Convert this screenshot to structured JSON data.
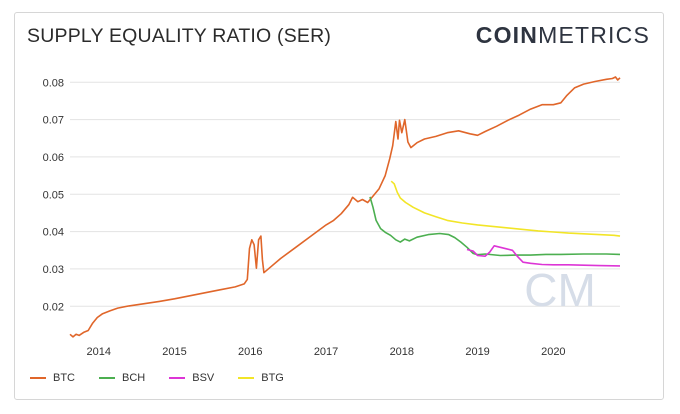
{
  "header": {
    "title": "SUPPLY EQUALITY RATIO (SER)",
    "logo_bold": "COIN",
    "logo_light": "METRICS"
  },
  "watermark": "CM",
  "chart_data": {
    "type": "line",
    "title": "SUPPLY EQUALITY RATIO (SER)",
    "xlabel": "",
    "ylabel": "",
    "xlim": [
      2013.62,
      2020.88
    ],
    "ylim": [
      0.0115,
      0.0865
    ],
    "x_ticks": [
      2014,
      2015,
      2016,
      2017,
      2018,
      2019,
      2020
    ],
    "x_tick_labels": [
      "2014",
      "2015",
      "2016",
      "2017",
      "2018",
      "2019",
      "2020"
    ],
    "y_ticks": [
      0.02,
      0.03,
      0.04,
      0.05,
      0.06,
      0.07,
      0.08
    ],
    "y_tick_labels": [
      "0.02",
      "0.03",
      "0.04",
      "0.05",
      "0.06",
      "0.07",
      "0.08"
    ],
    "grid": "horizontal",
    "legend_position": "bottom-left",
    "series": [
      {
        "name": "BTC",
        "color": "#e0662a",
        "points": [
          [
            2013.62,
            0.0125
          ],
          [
            2013.66,
            0.0118
          ],
          [
            2013.7,
            0.0125
          ],
          [
            2013.74,
            0.0122
          ],
          [
            2013.8,
            0.013
          ],
          [
            2013.86,
            0.0135
          ],
          [
            2013.92,
            0.0155
          ],
          [
            2013.98,
            0.017
          ],
          [
            2014.05,
            0.018
          ],
          [
            2014.15,
            0.0188
          ],
          [
            2014.25,
            0.0195
          ],
          [
            2014.4,
            0.0201
          ],
          [
            2014.6,
            0.0207
          ],
          [
            2014.8,
            0.0213
          ],
          [
            2015.0,
            0.022
          ],
          [
            2015.2,
            0.0228
          ],
          [
            2015.4,
            0.0236
          ],
          [
            2015.6,
            0.0244
          ],
          [
            2015.8,
            0.0252
          ],
          [
            2015.92,
            0.026
          ],
          [
            2015.96,
            0.0272
          ],
          [
            2015.99,
            0.0355
          ],
          [
            2016.02,
            0.0378
          ],
          [
            2016.05,
            0.0365
          ],
          [
            2016.08,
            0.0302
          ],
          [
            2016.11,
            0.0378
          ],
          [
            2016.14,
            0.0388
          ],
          [
            2016.16,
            0.0325
          ],
          [
            2016.18,
            0.029
          ],
          [
            2016.25,
            0.0302
          ],
          [
            2016.4,
            0.0328
          ],
          [
            2016.6,
            0.0358
          ],
          [
            2016.8,
            0.0388
          ],
          [
            2017.0,
            0.0418
          ],
          [
            2017.1,
            0.043
          ],
          [
            2017.2,
            0.0448
          ],
          [
            2017.3,
            0.0472
          ],
          [
            2017.35,
            0.0492
          ],
          [
            2017.42,
            0.048
          ],
          [
            2017.48,
            0.0486
          ],
          [
            2017.55,
            0.0478
          ],
          [
            2017.62,
            0.0495
          ],
          [
            2017.7,
            0.0515
          ],
          [
            2017.78,
            0.055
          ],
          [
            2017.84,
            0.0595
          ],
          [
            2017.88,
            0.063
          ],
          [
            2017.92,
            0.0695
          ],
          [
            2017.95,
            0.0648
          ],
          [
            2017.97,
            0.0698
          ],
          [
            2018.0,
            0.0665
          ],
          [
            2018.04,
            0.07
          ],
          [
            2018.08,
            0.064
          ],
          [
            2018.12,
            0.0625
          ],
          [
            2018.2,
            0.0638
          ],
          [
            2018.3,
            0.0648
          ],
          [
            2018.45,
            0.0655
          ],
          [
            2018.6,
            0.0665
          ],
          [
            2018.75,
            0.067
          ],
          [
            2018.9,
            0.0662
          ],
          [
            2019.0,
            0.0658
          ],
          [
            2019.1,
            0.0668
          ],
          [
            2019.25,
            0.0682
          ],
          [
            2019.4,
            0.0698
          ],
          [
            2019.55,
            0.0712
          ],
          [
            2019.7,
            0.0728
          ],
          [
            2019.85,
            0.074
          ],
          [
            2020.0,
            0.074
          ],
          [
            2020.1,
            0.0745
          ],
          [
            2020.18,
            0.0765
          ],
          [
            2020.28,
            0.0785
          ],
          [
            2020.4,
            0.0795
          ],
          [
            2020.55,
            0.0802
          ],
          [
            2020.7,
            0.0808
          ],
          [
            2020.78,
            0.081
          ],
          [
            2020.82,
            0.0814
          ],
          [
            2020.85,
            0.0806
          ],
          [
            2020.88,
            0.0812
          ]
        ]
      },
      {
        "name": "BCH",
        "color": "#4caf50",
        "points": [
          [
            2017.58,
            0.0493
          ],
          [
            2017.62,
            0.0465
          ],
          [
            2017.66,
            0.043
          ],
          [
            2017.72,
            0.0408
          ],
          [
            2017.78,
            0.0398
          ],
          [
            2017.85,
            0.039
          ],
          [
            2017.92,
            0.0378
          ],
          [
            2017.98,
            0.0372
          ],
          [
            2018.04,
            0.038
          ],
          [
            2018.1,
            0.0375
          ],
          [
            2018.2,
            0.0385
          ],
          [
            2018.35,
            0.0392
          ],
          [
            2018.5,
            0.0395
          ],
          [
            2018.62,
            0.0392
          ],
          [
            2018.7,
            0.0384
          ],
          [
            2018.78,
            0.0372
          ],
          [
            2018.86,
            0.0358
          ],
          [
            2018.94,
            0.0342
          ],
          [
            2019.0,
            0.0338
          ],
          [
            2019.1,
            0.034
          ],
          [
            2019.3,
            0.0336
          ],
          [
            2019.5,
            0.0337
          ],
          [
            2019.7,
            0.0337
          ],
          [
            2019.9,
            0.0339
          ],
          [
            2020.1,
            0.0339
          ],
          [
            2020.4,
            0.034
          ],
          [
            2020.7,
            0.034
          ],
          [
            2020.88,
            0.0339
          ]
        ]
      },
      {
        "name": "BSV",
        "color": "#dd35d6",
        "points": [
          [
            2018.86,
            0.0352
          ],
          [
            2018.94,
            0.0348
          ],
          [
            2019.0,
            0.0336
          ],
          [
            2019.1,
            0.0334
          ],
          [
            2019.16,
            0.0345
          ],
          [
            2019.22,
            0.0362
          ],
          [
            2019.3,
            0.0358
          ],
          [
            2019.38,
            0.0354
          ],
          [
            2019.46,
            0.035
          ],
          [
            2019.52,
            0.0335
          ],
          [
            2019.6,
            0.0318
          ],
          [
            2019.7,
            0.0315
          ],
          [
            2019.85,
            0.0312
          ],
          [
            2020.0,
            0.0311
          ],
          [
            2020.2,
            0.0311
          ],
          [
            2020.4,
            0.031
          ],
          [
            2020.6,
            0.0309
          ],
          [
            2020.88,
            0.0308
          ]
        ]
      },
      {
        "name": "BTG",
        "color": "#f2e527",
        "points": [
          [
            2017.86,
            0.0535
          ],
          [
            2017.9,
            0.0528
          ],
          [
            2017.94,
            0.0505
          ],
          [
            2017.98,
            0.049
          ],
          [
            2018.05,
            0.0478
          ],
          [
            2018.15,
            0.0465
          ],
          [
            2018.3,
            0.045
          ],
          [
            2018.45,
            0.044
          ],
          [
            2018.6,
            0.043
          ],
          [
            2018.8,
            0.0423
          ],
          [
            2019.0,
            0.0418
          ],
          [
            2019.2,
            0.0414
          ],
          [
            2019.4,
            0.041
          ],
          [
            2019.6,
            0.0406
          ],
          [
            2019.8,
            0.0402
          ],
          [
            2020.0,
            0.0399
          ],
          [
            2020.2,
            0.0396
          ],
          [
            2020.4,
            0.0394
          ],
          [
            2020.6,
            0.0392
          ],
          [
            2020.8,
            0.039
          ],
          [
            2020.88,
            0.0388
          ]
        ]
      }
    ]
  }
}
